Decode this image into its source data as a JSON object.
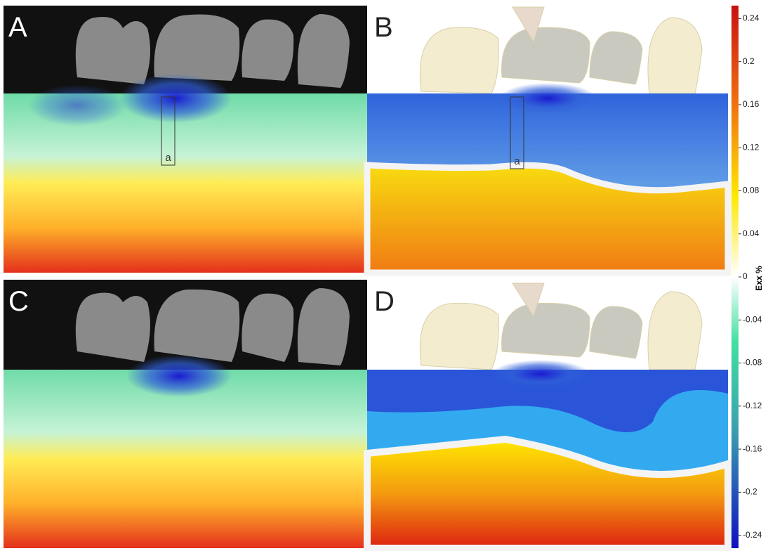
{
  "panels": [
    {
      "letter": "A",
      "box_label": "a"
    },
    {
      "letter": "B",
      "box_label": "a"
    },
    {
      "letter": "C"
    },
    {
      "letter": "D"
    }
  ],
  "colorbar": {
    "label": "Exx %",
    "range": [
      -0.252,
      0.252
    ],
    "ticks": [
      0.24,
      0.2,
      0.16,
      0.12,
      0.08,
      0.04,
      0,
      -0.04,
      -0.08,
      -0.12,
      -0.16,
      -0.2,
      -0.24
    ]
  }
}
